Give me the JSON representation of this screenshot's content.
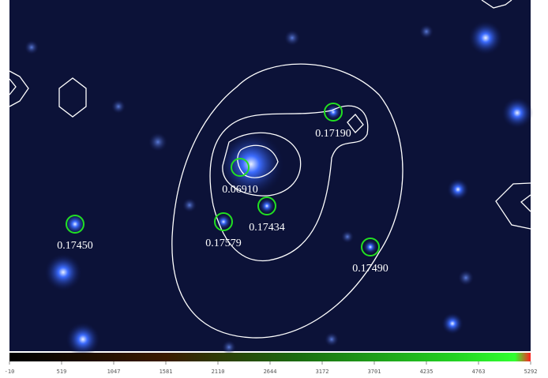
{
  "sources": [
    {
      "label": "0.17190"
    },
    {
      "label": "0.06910"
    },
    {
      "label": "0.17434"
    },
    {
      "label": "0.17579"
    },
    {
      "label": "0.17450"
    },
    {
      "label": "0.17490"
    }
  ],
  "colorbar": {
    "ticks": [
      "-10",
      "519",
      "1047",
      "1581",
      "2110",
      "2644",
      "3172",
      "3701",
      "4235",
      "4763",
      "5292"
    ]
  }
}
